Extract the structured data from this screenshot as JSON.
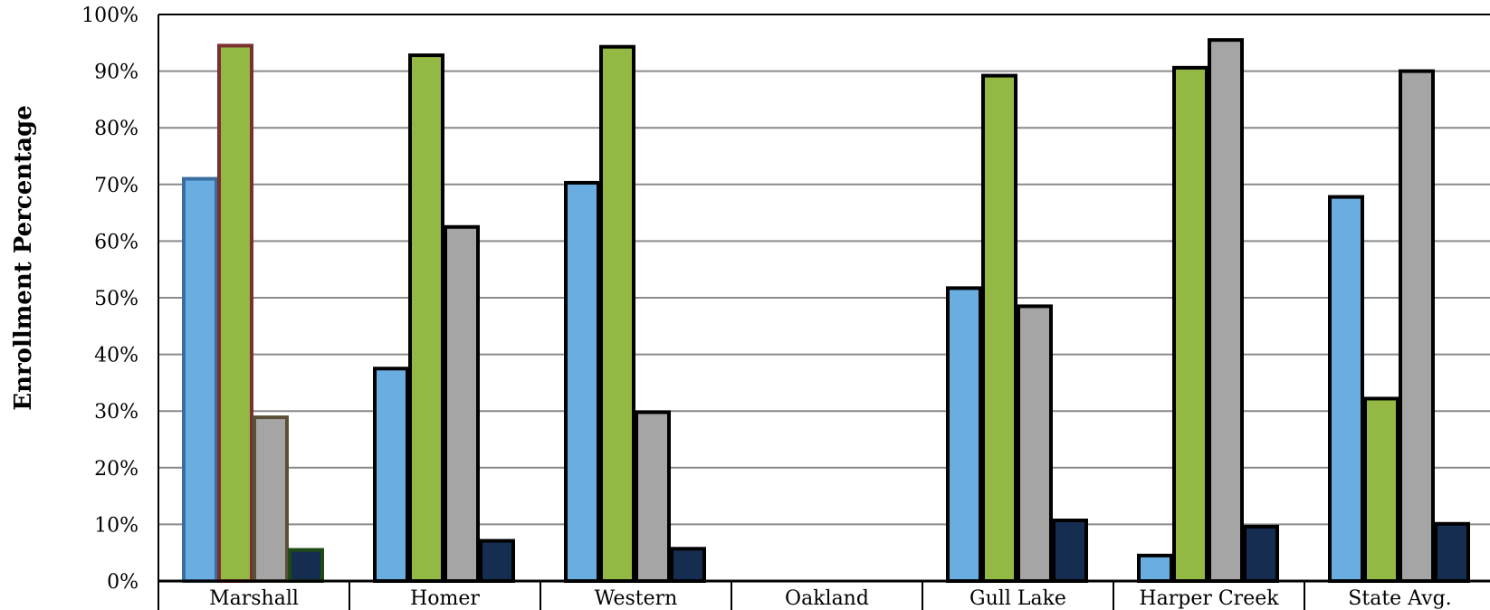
{
  "chart_data": {
    "type": "bar",
    "title": "",
    "xlabel": "",
    "ylabel": "Enrollment Percentage",
    "ylim": [
      0,
      100
    ],
    "y_ticks": [
      "0%",
      "10%",
      "20%",
      "30%",
      "40%",
      "50%",
      "60%",
      "70%",
      "80%",
      "90%",
      "100%"
    ],
    "grid": true,
    "legend": "none",
    "categories": [
      "Marshall",
      "Homer",
      "Western",
      "Oakland",
      "Gull Lake",
      "Harper Creek",
      "State Avg."
    ],
    "series": [
      {
        "color": "#6aade0",
        "values": [
          71,
          37.5,
          70.3,
          null,
          51.7,
          4.5,
          67.8
        ]
      },
      {
        "color": "#93b944",
        "values": [
          94.5,
          92.8,
          94.3,
          null,
          89.2,
          90.6,
          32.2
        ]
      },
      {
        "color": "#a5a5a5",
        "values": [
          28.9,
          62.5,
          29.8,
          null,
          48.5,
          95.5,
          90
        ]
      },
      {
        "color": "#142d50",
        "values": [
          5.5,
          7.1,
          5.7,
          null,
          10.7,
          9.6,
          10.1
        ]
      }
    ],
    "marshall_outline_colors": [
      "#3b6ea0",
      "#7b3030",
      "#5a4f38",
      "#1e4a14"
    ],
    "default_outline_color": "#000000"
  }
}
